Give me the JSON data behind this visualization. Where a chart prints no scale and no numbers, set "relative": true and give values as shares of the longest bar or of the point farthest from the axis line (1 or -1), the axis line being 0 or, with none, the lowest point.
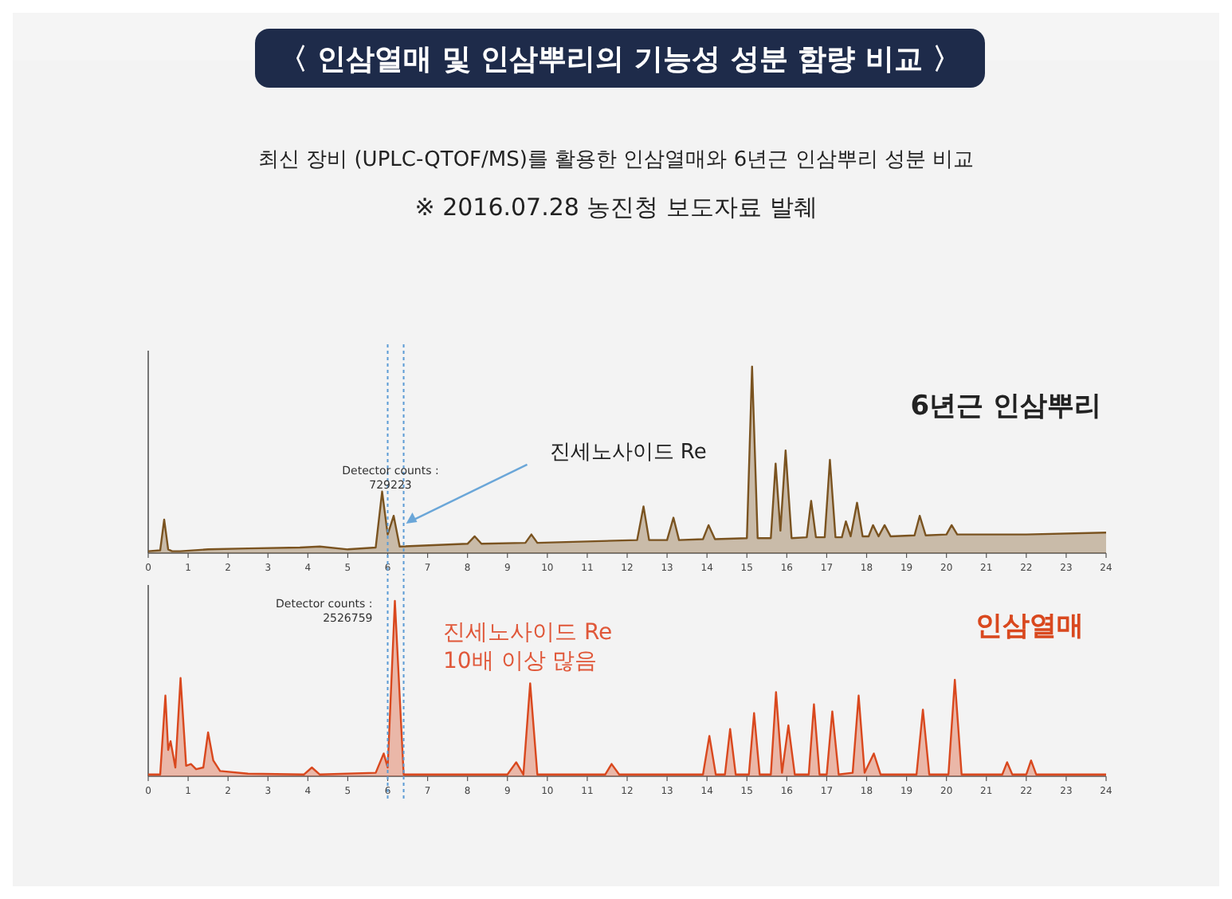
{
  "chart_data": [
    {
      "type": "area",
      "title": "〈 인삼열매 및 인삼뿌리의 기능성 성분 함량 비교 〉",
      "subtitle": "최신 장비 (UPLC-QTOF/MS)를 활용한 인삼열매와 6년근 인삼뿌리 성분 비교",
      "relative": true,
      "xlim": [
        0,
        24
      ],
      "xticks": [
        0,
        1,
        2,
        3,
        4,
        5,
        6,
        7,
        8,
        9,
        10,
        11,
        12,
        13,
        14,
        15,
        16,
        17,
        18,
        19,
        20,
        21,
        22,
        23,
        24
      ],
      "tick_labels": "x",
      "annotations": [
        "※ 2016.07.28 농진청 보도자료 발췌",
        {
          "text": "Detector counts :\n729223",
          "x": 6.15,
          "y": 0.2
        },
        {
          "text": "진세노사이드 Re",
          "x": 6.3,
          "y": 0.15
        }
      ],
      "ref_lines": [
        {
          "axis": "x",
          "value": 6.0,
          "color": "#5b9bd5",
          "line_style": "dotted"
        },
        {
          "axis": "x",
          "value": 6.4,
          "color": "#5b9bd5",
          "line_style": "dotted"
        }
      ],
      "series": [
        {
          "name": "6년근 인삼뿌리",
          "color": "#7a5320",
          "x": [
            0,
            0.3,
            0.4,
            0.5,
            0.6,
            0.8,
            1.5,
            2.5,
            3.8,
            4.3,
            5.0,
            5.7,
            5.86,
            6.0,
            6.15,
            6.3,
            8.0,
            8.18,
            8.35,
            9.45,
            9.6,
            9.75,
            12.25,
            12.41,
            12.55,
            13.0,
            13.16,
            13.3,
            13.9,
            14.04,
            14.2,
            15.0,
            15.13,
            15.27,
            15.6,
            15.72,
            15.84,
            15.97,
            16.12,
            16.5,
            16.61,
            16.73,
            16.95,
            17.08,
            17.22,
            17.38,
            17.48,
            17.6,
            17.76,
            17.9,
            18.05,
            18.16,
            18.3,
            18.45,
            18.6,
            19.2,
            19.33,
            19.48,
            20.0,
            20.13,
            20.27,
            22,
            24
          ],
          "values": [
            0.01,
            0.015,
            0.18,
            0.02,
            0.01,
            0.01,
            0.02,
            0.025,
            0.03,
            0.035,
            0.02,
            0.03,
            0.33,
            0.1,
            0.2,
            0.035,
            0.05,
            0.09,
            0.05,
            0.055,
            0.1,
            0.055,
            0.07,
            0.25,
            0.07,
            0.07,
            0.19,
            0.07,
            0.075,
            0.15,
            0.075,
            0.08,
            1,
            0.08,
            0.08,
            0.48,
            0.12,
            0.55,
            0.08,
            0.085,
            0.28,
            0.085,
            0.085,
            0.5,
            0.085,
            0.085,
            0.17,
            0.09,
            0.27,
            0.09,
            0.09,
            0.15,
            0.09,
            0.15,
            0.09,
            0.095,
            0.2,
            0.095,
            0.1,
            0.15,
            0.1,
            0.1,
            0.11
          ]
        }
      ]
    },
    {
      "type": "area",
      "relative": true,
      "xlim": [
        0,
        24
      ],
      "xticks": [
        0,
        1,
        2,
        3,
        4,
        5,
        6,
        7,
        8,
        9,
        10,
        11,
        12,
        13,
        14,
        15,
        16,
        17,
        18,
        19,
        20,
        21,
        22,
        23,
        24
      ],
      "tick_labels": "x",
      "annotations": [
        "진세노사이드 Re\n10배 이상 많음",
        {
          "text": "Detector counts :\n2526759",
          "x": 6.18,
          "y": 1
        }
      ],
      "ref_lines": [
        {
          "axis": "x",
          "value": 6.0,
          "color": "#5b9bd5",
          "line_style": "dotted"
        },
        {
          "axis": "x",
          "value": 6.4,
          "color": "#5b9bd5",
          "line_style": "dotted"
        }
      ],
      "series": [
        {
          "name": "인삼열매",
          "color": "#d9481e",
          "x": [
            0,
            0.3,
            0.43,
            0.5,
            0.56,
            0.68,
            0.81,
            0.95,
            1.07,
            1.2,
            1.38,
            1.5,
            1.63,
            1.8,
            2.5,
            3.9,
            4.1,
            4.3,
            5.7,
            5.9,
            6.0,
            6.18,
            6.4,
            9.0,
            9.22,
            9.4,
            9.57,
            9.75,
            11.45,
            11.61,
            11.8,
            13.9,
            14.06,
            14.22,
            14.45,
            14.58,
            14.72,
            15.05,
            15.18,
            15.32,
            15.6,
            15.73,
            15.88,
            16.04,
            16.2,
            16.55,
            16.68,
            16.82,
            17.0,
            17.14,
            17.3,
            17.65,
            17.8,
            17.95,
            18.18,
            18.35,
            19.25,
            19.41,
            19.57,
            20.05,
            20.21,
            20.38,
            21.4,
            21.52,
            21.65,
            22.0,
            22.12,
            22.25,
            24
          ],
          "values": [
            0.01,
            0.01,
            0.46,
            0.15,
            0.2,
            0.05,
            0.56,
            0.06,
            0.07,
            0.04,
            0.05,
            0.25,
            0.09,
            0.03,
            0.015,
            0.01,
            0.05,
            0.01,
            0.02,
            0.13,
            0.05,
            1,
            0.01,
            0.01,
            0.08,
            0.01,
            0.53,
            0.01,
            0.01,
            0.07,
            0.01,
            0.01,
            0.23,
            0.01,
            0.01,
            0.27,
            0.01,
            0.01,
            0.36,
            0.01,
            0.01,
            0.48,
            0.02,
            0.29,
            0.01,
            0.01,
            0.41,
            0.01,
            0.01,
            0.37,
            0.01,
            0.02,
            0.46,
            0.02,
            0.13,
            0.01,
            0.01,
            0.38,
            0.01,
            0.01,
            0.55,
            0.01,
            0.01,
            0.08,
            0.01,
            0.01,
            0.09,
            0.01,
            0.01
          ]
        }
      ]
    }
  ]
}
